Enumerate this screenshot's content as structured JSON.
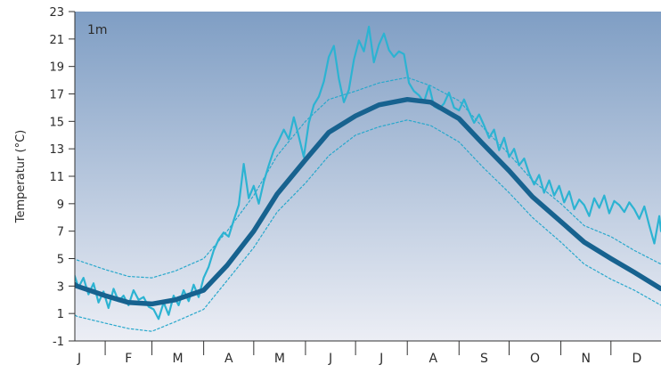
{
  "chart_data": {
    "type": "line",
    "title": "",
    "panel_label": "1m",
    "xlabel": "",
    "ylabel": "Temperatur (°C)",
    "ylim": [
      -1,
      23
    ],
    "yticks": [
      -1,
      1,
      3,
      5,
      7,
      9,
      11,
      13,
      15,
      17,
      19,
      21,
      23
    ],
    "ytick_labels": [
      "-1",
      "1",
      "3",
      "5",
      "7",
      "9",
      "11",
      "13",
      "15",
      "17",
      "19",
      "21",
      "23"
    ],
    "months": [
      "J",
      "F",
      "M",
      "A",
      "M",
      "J",
      "J",
      "A",
      "S",
      "O",
      "N",
      "D"
    ],
    "xlim_days": [
      1,
      365
    ],
    "grid": false,
    "colors": {
      "background_top": "#7f9ec4",
      "background_bottom": "#eceef5",
      "mean": "#17628f",
      "band": "#29a8cc",
      "observed": "#2cb3d2"
    },
    "series": [
      {
        "key": "mean",
        "style": "thick",
        "x_day": [
          1,
          15,
          32,
          46,
          60,
          74,
          91,
          105,
          121,
          135,
          152,
          166,
          182,
          196,
          213,
          227,
          244,
          258,
          274,
          288,
          305,
          319,
          335,
          349,
          365
        ],
        "y": [
          4.2,
          3.0,
          2.3,
          1.8,
          1.7,
          2.0,
          2.7,
          4.5,
          7.0,
          9.7,
          12.2,
          14.2,
          15.4,
          16.2,
          16.6,
          16.4,
          15.2,
          13.4,
          11.4,
          9.5,
          7.7,
          6.2,
          5.0,
          4.0,
          2.8
        ]
      },
      {
        "key": "upper",
        "style": "dotted",
        "x_day": [
          1,
          15,
          32,
          46,
          60,
          74,
          91,
          105,
          121,
          135,
          152,
          166,
          182,
          196,
          213,
          227,
          244,
          258,
          274,
          288,
          305,
          319,
          335,
          349,
          365
        ],
        "y": [
          5.8,
          4.9,
          4.2,
          3.7,
          3.6,
          4.1,
          5.0,
          7.0,
          9.6,
          12.5,
          15.0,
          16.6,
          17.2,
          17.8,
          18.2,
          17.6,
          16.5,
          14.6,
          12.6,
          10.7,
          9.0,
          7.4,
          6.6,
          5.6,
          4.6
        ]
      },
      {
        "key": "lower",
        "style": "dotted",
        "x_day": [
          1,
          15,
          32,
          46,
          60,
          74,
          91,
          105,
          121,
          135,
          152,
          166,
          182,
          196,
          213,
          227,
          244,
          258,
          274,
          288,
          305,
          319,
          335,
          349,
          365
        ],
        "y": [
          2.0,
          0.8,
          0.3,
          -0.1,
          -0.3,
          0.4,
          1.3,
          3.4,
          5.8,
          8.4,
          10.5,
          12.5,
          14.0,
          14.6,
          15.1,
          14.7,
          13.5,
          11.7,
          9.8,
          8.0,
          6.2,
          4.6,
          3.5,
          2.7,
          1.6
        ]
      },
      {
        "key": "observed",
        "style": "thin",
        "x_day": [
          1,
          4,
          7,
          10,
          13,
          16,
          19,
          22,
          25,
          28,
          31,
          34,
          37,
          40,
          43,
          46,
          49,
          52,
          55,
          58,
          61,
          64,
          67,
          70,
          73,
          76,
          79,
          82,
          85,
          88,
          91,
          94,
          97,
          100,
          103,
          106,
          109,
          112,
          115,
          118,
          121,
          124,
          127,
          130,
          133,
          136,
          139,
          142,
          145,
          148,
          151,
          154,
          157,
          160,
          163,
          166,
          169,
          172,
          175,
          178,
          181,
          184,
          187,
          190,
          193,
          196,
          199,
          202,
          205,
          208,
          211,
          214,
          217,
          220,
          223,
          226,
          229,
          232,
          235,
          238,
          241,
          244,
          247,
          250,
          253,
          256,
          259,
          262,
          265,
          268,
          271,
          274,
          277,
          280,
          283,
          286,
          289,
          292,
          295,
          298,
          301,
          304,
          307,
          310,
          313,
          316,
          319,
          322,
          325,
          328,
          331,
          334,
          337,
          340,
          343,
          346,
          349,
          352,
          355,
          358,
          361,
          364,
          365
        ],
        "y": [
          6.4,
          5.5,
          6.1,
          4.9,
          4.0,
          2.9,
          3.6,
          2.4,
          3.2,
          1.8,
          2.6,
          1.4,
          2.8,
          1.9,
          2.3,
          1.6,
          2.7,
          2.0,
          2.2,
          1.5,
          1.3,
          0.6,
          1.8,
          0.9,
          2.3,
          1.6,
          2.7,
          1.9,
          3.1,
          2.2,
          3.6,
          4.4,
          5.6,
          6.4,
          6.9,
          6.6,
          7.8,
          8.9,
          11.9,
          9.4,
          10.3,
          9.0,
          10.6,
          11.8,
          12.9,
          13.6,
          14.4,
          13.7,
          15.3,
          13.9,
          12.4,
          14.9,
          16.2,
          16.8,
          17.9,
          19.7,
          20.5,
          18.1,
          16.4,
          17.3,
          19.5,
          20.9,
          20.1,
          21.9,
          19.3,
          20.6,
          21.4,
          20.2,
          19.7,
          20.1,
          19.9,
          17.8,
          17.2,
          16.9,
          16.4,
          17.6,
          16.1,
          15.9,
          16.3,
          17.1,
          16.0,
          15.8,
          16.6,
          15.7,
          14.9,
          15.5,
          14.7,
          13.8,
          14.4,
          12.9,
          13.8,
          12.4,
          13.0,
          11.8,
          12.3,
          11.2,
          10.4,
          11.1,
          9.8,
          10.7,
          9.6,
          10.3,
          9.1,
          9.9,
          8.6,
          9.3,
          8.9,
          8.1,
          9.4,
          8.7,
          9.6,
          8.3,
          9.2,
          8.9,
          8.4,
          9.1,
          8.6,
          7.9,
          8.8,
          7.4,
          6.1,
          8.1,
          7.0
        ]
      }
    ]
  }
}
